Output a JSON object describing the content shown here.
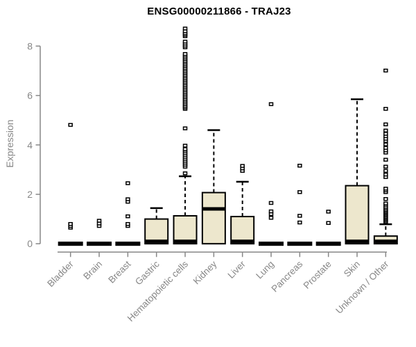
{
  "chart_data": {
    "type": "boxplot",
    "title": "ENSG00000211866 - TRAJ23",
    "ylabel": "Expression",
    "xlabel": "",
    "ylim": [
      0,
      8.8
    ],
    "yticks": [
      0,
      2,
      4,
      6,
      8
    ],
    "grid": false,
    "legend": "none",
    "colors": {
      "box_fill": "#EDE7CD",
      "box_stroke": "#000000",
      "axis": "#878787",
      "tick_label": "#878787",
      "title": "#000000"
    },
    "categories": [
      "Bladder",
      "Brain",
      "Breast",
      "Gastric",
      "Hematopoietic cells",
      "Kidney",
      "Liver",
      "Lung",
      "Pancreas",
      "Prostate",
      "Skin",
      "Unknown / Other"
    ],
    "boxes": [
      {
        "category": "Bladder",
        "q1": 0,
        "median": 0,
        "q3": 0,
        "whisker_low": 0,
        "whisker_high": 0,
        "outliers": [
          0.65,
          0.72,
          0.8,
          4.81
        ]
      },
      {
        "category": "Brain",
        "q1": 0,
        "median": 0,
        "q3": 0,
        "whisker_low": 0,
        "whisker_high": 0,
        "outliers": [
          0.72,
          0.82,
          0.93
        ]
      },
      {
        "category": "Breast",
        "q1": 0,
        "median": 0,
        "q3": 0,
        "whisker_low": 0,
        "whisker_high": 0,
        "outliers": [
          0.72,
          0.8,
          1.11,
          1.7,
          1.8,
          2.45
        ]
      },
      {
        "category": "Gastric",
        "q1": 0,
        "median": 0.03,
        "q3": 1.0,
        "whisker_low": 0,
        "whisker_high": 1.44,
        "outliers": []
      },
      {
        "category": "Hematopoietic cells",
        "q1": 0,
        "median": 0.05,
        "q3": 1.13,
        "whisker_low": 0,
        "whisker_high": 2.73,
        "outliers": [
          2.85,
          3.12,
          3.2,
          3.28,
          3.36,
          3.44,
          3.52,
          3.6,
          3.68,
          3.76,
          3.83,
          3.97,
          4.67,
          5.46,
          5.52,
          5.58,
          5.65,
          5.72,
          5.79,
          5.86,
          5.93,
          6.0,
          6.07,
          6.14,
          6.21,
          6.28,
          6.35,
          6.42,
          6.49,
          6.56,
          6.63,
          6.7,
          6.77,
          6.84,
          6.91,
          6.98,
          7.05,
          7.12,
          7.19,
          7.26,
          7.33,
          7.4,
          7.47,
          7.54,
          7.61,
          7.68,
          7.95,
          8.02,
          8.1,
          8.18,
          8.4,
          8.46,
          8.52,
          8.6,
          8.71
        ]
      },
      {
        "category": "Kidney",
        "q1": 0,
        "median": 1.41,
        "q3": 2.07,
        "whisker_low": 0,
        "whisker_high": 4.6,
        "outliers": []
      },
      {
        "category": "Liver",
        "q1": 0,
        "median": 0.04,
        "q3": 1.1,
        "whisker_low": 0,
        "whisker_high": 2.51,
        "outliers": [
          2.95,
          3.05,
          3.15
        ]
      },
      {
        "category": "Lung",
        "q1": 0,
        "median": 0,
        "q3": 0,
        "whisker_low": 0,
        "whisker_high": 0,
        "outliers": [
          1.05,
          1.2,
          1.31,
          1.65,
          5.65
        ]
      },
      {
        "category": "Pancreas",
        "q1": 0,
        "median": 0,
        "q3": 0,
        "whisker_low": 0,
        "whisker_high": 0,
        "outliers": [
          0.86,
          1.13,
          2.09,
          3.16
        ]
      },
      {
        "category": "Prostate",
        "q1": 0,
        "median": 0,
        "q3": 0,
        "whisker_low": 0,
        "whisker_high": 0,
        "outliers": [
          0.84,
          1.3
        ]
      },
      {
        "category": "Skin",
        "q1": 0,
        "median": 0.04,
        "q3": 2.35,
        "whisker_low": 0,
        "whisker_high": 5.85,
        "outliers": []
      },
      {
        "category": "Unknown / Other",
        "q1": 0,
        "median": 0.03,
        "q3": 0.31,
        "whisker_low": 0,
        "whisker_high": 0.79,
        "outliers": [
          0.88,
          0.93,
          0.98,
          1.03,
          1.08,
          1.13,
          1.18,
          1.23,
          1.28,
          1.33,
          1.38,
          1.44,
          1.5,
          1.57,
          1.63,
          1.81,
          2.09,
          2.16,
          2.23,
          2.7,
          2.8,
          2.95,
          3.12,
          3.4,
          3.69,
          3.78,
          3.88,
          4.02,
          4.16,
          4.25,
          4.35,
          4.45,
          4.58,
          4.83,
          5.46,
          7.01
        ]
      }
    ]
  }
}
